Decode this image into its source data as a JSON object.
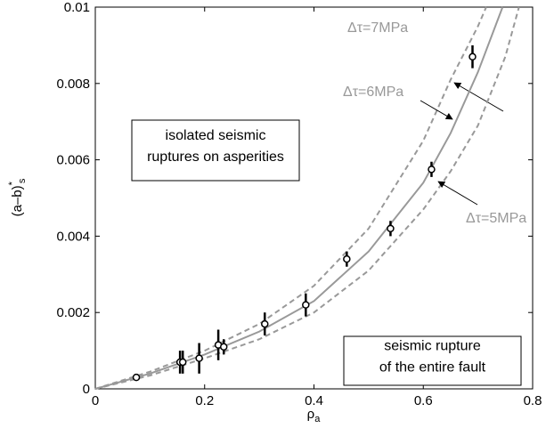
{
  "chart_data": {
    "type": "scatter",
    "xlabel": "ρ",
    "xlabel_sub": "a",
    "ylabel": "(a–b)",
    "ylabel_sup": "*",
    "ylabel_sub": "s",
    "xlim": [
      0,
      0.8
    ],
    "xticks": [
      0,
      0.2,
      0.4,
      0.6,
      0.8
    ],
    "ylim": [
      0,
      0.01
    ],
    "yticks": [
      0,
      0.002,
      0.004,
      0.006,
      0.008,
      0.01
    ],
    "series": [
      {
        "color": "#000000",
        "x": [
          0.075,
          0.155,
          0.16,
          0.19,
          0.225,
          0.235,
          0.31,
          0.385,
          0.46,
          0.54,
          0.615,
          0.69
        ],
        "values": [
          0.0003,
          0.0007,
          0.0007,
          0.0008,
          0.00115,
          0.0011,
          0.0017,
          0.0022,
          0.0034,
          0.0042,
          0.00575,
          0.0087
        ],
        "errors": [
          5e-05,
          0.0003,
          0.0003,
          0.0004,
          0.0004,
          0.0002,
          0.0003,
          0.0003,
          0.0002,
          0.0002,
          0.0002,
          0.0003
        ]
      }
    ],
    "curves": [
      {
        "name": "Δτ=7MPa",
        "color": "#999999",
        "dashed": true,
        "x": [
          0,
          0.1,
          0.2,
          0.3,
          0.4,
          0.5,
          0.6,
          0.65,
          0.7,
          0.715
        ],
        "values": [
          0,
          0.00045,
          0.001,
          0.0017,
          0.0027,
          0.0042,
          0.0065,
          0.0081,
          0.0095,
          0.01
        ]
      },
      {
        "name": "Δτ=6MPa",
        "color": "#999999",
        "dashed": false,
        "x": [
          0,
          0.1,
          0.2,
          0.3,
          0.4,
          0.5,
          0.6,
          0.65,
          0.7,
          0.745
        ],
        "values": [
          0,
          0.0004,
          0.0009,
          0.0015,
          0.0023,
          0.0036,
          0.0054,
          0.0067,
          0.0083,
          0.01
        ]
      },
      {
        "name": "Δτ=5MPa",
        "color": "#999999",
        "dashed": true,
        "x": [
          0,
          0.1,
          0.2,
          0.3,
          0.4,
          0.5,
          0.6,
          0.65,
          0.7,
          0.75,
          0.775
        ],
        "values": [
          0,
          0.00035,
          0.0008,
          0.0013,
          0.002,
          0.0031,
          0.0047,
          0.0057,
          0.0069,
          0.0087,
          0.01
        ]
      }
    ],
    "boxes": [
      {
        "lines": [
          "isolated seismic",
          "ruptures on asperities"
        ]
      },
      {
        "lines": [
          "seismic rupture",
          "of the entire fault"
        ]
      }
    ]
  }
}
